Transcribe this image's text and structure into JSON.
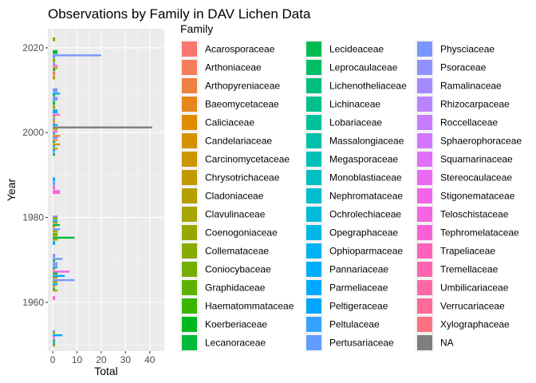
{
  "chart_data": {
    "type": "bar",
    "orientation": "horizontal",
    "title": "Observations by Family in DAV Lichen Data",
    "xlabel": "Total",
    "ylabel": "Year",
    "xlim": [
      -2,
      46
    ],
    "ylim": [
      1948.5,
      2024.5
    ],
    "x_ticks": [
      0,
      10,
      20,
      30,
      40
    ],
    "y_ticks": [
      1960,
      1980,
      2000,
      2020
    ],
    "grid": true,
    "legend_title": "Family",
    "legend_position": "right",
    "families": [
      {
        "name": "Acarosporaceae",
        "color": "#F8766D"
      },
      {
        "name": "Arthoniaceae",
        "color": "#F47D5A"
      },
      {
        "name": "Arthopyreniaceae",
        "color": "#EE8044"
      },
      {
        "name": "Baeomycetaceae",
        "color": "#E7861B"
      },
      {
        "name": "Caliciaceae",
        "color": "#DF8C00"
      },
      {
        "name": "Candelariaceae",
        "color": "#D59100"
      },
      {
        "name": "Carcinomycetaceae",
        "color": "#CB9600"
      },
      {
        "name": "Chrysotrichaceae",
        "color": "#C19A00"
      },
      {
        "name": "Cladoniaceae",
        "color": "#B49F00"
      },
      {
        "name": "Clavulinaceae",
        "color": "#A6A400"
      },
      {
        "name": "Coenogoniaceae",
        "color": "#98A700"
      },
      {
        "name": "Collemataceae",
        "color": "#87AB00"
      },
      {
        "name": "Coniocybaceae",
        "color": "#74AE00"
      },
      {
        "name": "Graphidaceae",
        "color": "#5BB300"
      },
      {
        "name": "Haematommataceae",
        "color": "#39B600"
      },
      {
        "name": "Koerberiaceae",
        "color": "#00B81F"
      },
      {
        "name": "Lecanoraceae",
        "color": "#00BA38"
      },
      {
        "name": "Lecideaceae",
        "color": "#00BC4F"
      },
      {
        "name": "Leprocaulaceae",
        "color": "#00BE67"
      },
      {
        "name": "Lichenotheliaceae",
        "color": "#00BF7D"
      },
      {
        "name": "Lichinaceae",
        "color": "#00C08D"
      },
      {
        "name": "Lobariaceae",
        "color": "#00C19C"
      },
      {
        "name": "Massalongiaceae",
        "color": "#00C1AA"
      },
      {
        "name": "Megasporaceae",
        "color": "#00C0B8"
      },
      {
        "name": "Monoblastiaceae",
        "color": "#00BFC4"
      },
      {
        "name": "Nephromataceae",
        "color": "#00BDD0"
      },
      {
        "name": "Ochrolechiaceae",
        "color": "#00BBDB"
      },
      {
        "name": "Opegraphaceae",
        "color": "#00B7E7"
      },
      {
        "name": "Ophioparmaceae",
        "color": "#00B2F2"
      },
      {
        "name": "Pannariaceae",
        "color": "#00ADFA"
      },
      {
        "name": "Parmeliaceae",
        "color": "#00A9FF"
      },
      {
        "name": "Peltigeraceae",
        "color": "#00A5FF"
      },
      {
        "name": "Peltulaceae",
        "color": "#35A2FF"
      },
      {
        "name": "Pertusariaceae",
        "color": "#619CFF"
      },
      {
        "name": "Physciaceae",
        "color": "#7997FF"
      },
      {
        "name": "Psoraceae",
        "color": "#8F91FF"
      },
      {
        "name": "Ramalinaceae",
        "color": "#A58AFF"
      },
      {
        "name": "Rhizocarpaceae",
        "color": "#B983FF"
      },
      {
        "name": "Roccellaceae",
        "color": "#C77CFF"
      },
      {
        "name": "Sphaerophoraceae",
        "color": "#D376FF"
      },
      {
        "name": "Squamarinaceae",
        "color": "#E06FF9"
      },
      {
        "name": "Stereocaulaceae",
        "color": "#EA6AF1"
      },
      {
        "name": "Stigonemataceae",
        "color": "#F166E8"
      },
      {
        "name": "Teloschistaceae",
        "color": "#F763E0"
      },
      {
        "name": "Tephromelataceae",
        "color": "#FB61D7"
      },
      {
        "name": "Trapeliaceae",
        "color": "#FF62BC"
      },
      {
        "name": "Tremellaceae",
        "color": "#FF64B0"
      },
      {
        "name": "Umbilicariaceae",
        "color": "#FF67A4"
      },
      {
        "name": "Verrucariaceae",
        "color": "#FF6A98"
      },
      {
        "name": "Xylographaceae",
        "color": "#FC717F"
      },
      {
        "name": "NA",
        "color": "#7F7F7F"
      }
    ],
    "bars": [
      {
        "year": 1950,
        "family": "Peltigeraceae",
        "value": 1
      },
      {
        "year": 1950,
        "family": "Cladoniaceae",
        "value": 1
      },
      {
        "year": 1951,
        "family": "Physciaceae",
        "value": 1
      },
      {
        "year": 1951,
        "family": "Lecanoraceae",
        "value": 1
      },
      {
        "year": 1952,
        "family": "Parmeliaceae",
        "value": 4
      },
      {
        "year": 1952,
        "family": "Teloschistaceae",
        "value": 1
      },
      {
        "year": 1953,
        "family": "Physciaceae",
        "value": 1
      },
      {
        "year": 1953,
        "family": "Collemataceae",
        "value": 1
      },
      {
        "year": 1961,
        "family": "Teloschistaceae",
        "value": 1
      },
      {
        "year": 1963,
        "family": "Lecanoraceae",
        "value": 1
      },
      {
        "year": 1963,
        "family": "Cladoniaceae",
        "value": 2
      },
      {
        "year": 1964,
        "family": "Parmeliaceae",
        "value": 2
      },
      {
        "year": 1964,
        "family": "Candelariaceae",
        "value": 1
      },
      {
        "year": 1965,
        "family": "Physciaceae",
        "value": 9
      },
      {
        "year": 1965,
        "family": "Collemataceae",
        "value": 2
      },
      {
        "year": 1966,
        "family": "Peltigeraceae",
        "value": 5
      },
      {
        "year": 1966,
        "family": "Cladoniaceae",
        "value": 2
      },
      {
        "year": 1967,
        "family": "Teloschistaceae",
        "value": 7
      },
      {
        "year": 1967,
        "family": "Lecanoraceae",
        "value": 2
      },
      {
        "year": 1968,
        "family": "Parmeliaceae",
        "value": 2
      },
      {
        "year": 1968,
        "family": "Candelariaceae",
        "value": 1
      },
      {
        "year": 1969,
        "family": "Physciaceae",
        "value": 2
      },
      {
        "year": 1970,
        "family": "Pertusariaceae",
        "value": 4
      },
      {
        "year": 1970,
        "family": "Lecanoraceae",
        "value": 1
      },
      {
        "year": 1971,
        "family": "Physciaceae",
        "value": 1
      },
      {
        "year": 1974,
        "family": "Parmeliaceae",
        "value": 1
      },
      {
        "year": 1975,
        "family": "Lecanoraceae",
        "value": 9
      },
      {
        "year": 1975,
        "family": "Cladoniaceae",
        "value": 2
      },
      {
        "year": 1976,
        "family": "Collemataceae",
        "value": 2
      },
      {
        "year": 1977,
        "family": "Physciaceae",
        "value": 3
      },
      {
        "year": 1977,
        "family": "Cladoniaceae",
        "value": 2
      },
      {
        "year": 1978,
        "family": "Lecanoraceae",
        "value": 3
      },
      {
        "year": 1978,
        "family": "Candelariaceae",
        "value": 1
      },
      {
        "year": 1979,
        "family": "Parmeliaceae",
        "value": 2
      },
      {
        "year": 1979,
        "family": "Cladoniaceae",
        "value": 2
      },
      {
        "year": 1980,
        "family": "Physciaceae",
        "value": 2
      },
      {
        "year": 1980,
        "family": "Collemataceae",
        "value": 2
      },
      {
        "year": 1986,
        "family": "Teloschistaceae",
        "value": 3
      },
      {
        "year": 1987,
        "family": "Teloschistaceae",
        "value": 1
      },
      {
        "year": 1988,
        "family": "Physciaceae",
        "value": 1
      },
      {
        "year": 1989,
        "family": "Parmeliaceae",
        "value": 1
      },
      {
        "year": 1995,
        "family": "Physciaceae",
        "value": 1
      },
      {
        "year": 1995,
        "family": "Lecanoraceae",
        "value": 1
      },
      {
        "year": 1996,
        "family": "Cladoniaceae",
        "value": 2
      },
      {
        "year": 1996,
        "family": "Parmeliaceae",
        "value": 1
      },
      {
        "year": 1997,
        "family": "Candelariaceae",
        "value": 3
      },
      {
        "year": 1997,
        "family": "Peltigeraceae",
        "value": 1
      },
      {
        "year": 1998,
        "family": "Arthoniaceae",
        "value": 2
      },
      {
        "year": 1998,
        "family": "Lecanoraceae",
        "value": 1
      },
      {
        "year": 1999,
        "family": "Baeomycetaceae",
        "value": 3
      },
      {
        "year": 1999,
        "family": "Physciaceae",
        "value": 2
      },
      {
        "year": 2000,
        "family": "Teloschistaceae",
        "value": 2
      },
      {
        "year": 2000,
        "family": "Parmeliaceae",
        "value": 1
      },
      {
        "year": 2001,
        "family": "NA",
        "value": 41
      },
      {
        "year": 2001,
        "family": "Cladoniaceae",
        "value": 2
      },
      {
        "year": 2002,
        "family": "Acarosporaceae",
        "value": 1
      },
      {
        "year": 2002,
        "family": "Peltigeraceae",
        "value": 2
      },
      {
        "year": 2003,
        "family": "Physciaceae",
        "value": 1
      },
      {
        "year": 2003,
        "family": "Candelariaceae",
        "value": 1
      },
      {
        "year": 2004,
        "family": "Teloschistaceae",
        "value": 3
      },
      {
        "year": 2004,
        "family": "Cladoniaceae",
        "value": 1
      },
      {
        "year": 2005,
        "family": "Parmeliaceae",
        "value": 2
      },
      {
        "year": 2006,
        "family": "Cladoniaceae",
        "value": 1
      },
      {
        "year": 2007,
        "family": "Lecanoraceae",
        "value": 1
      },
      {
        "year": 2008,
        "family": "Physciaceae",
        "value": 2
      },
      {
        "year": 2009,
        "family": "Parmeliaceae",
        "value": 3
      },
      {
        "year": 2009,
        "family": "Lecanoraceae",
        "value": 1
      },
      {
        "year": 2010,
        "family": "Physciaceae",
        "value": 2
      },
      {
        "year": 2013,
        "family": "Cladoniaceae",
        "value": 1
      },
      {
        "year": 2014,
        "family": "Arthoniaceae",
        "value": 1
      },
      {
        "year": 2015,
        "family": "Cladoniaceae",
        "value": 2
      },
      {
        "year": 2015,
        "family": "Lecanoraceae",
        "value": 1
      },
      {
        "year": 2016,
        "family": "Physciaceae",
        "value": 1
      },
      {
        "year": 2016,
        "family": "Teloschistaceae",
        "value": 2
      },
      {
        "year": 2017,
        "family": "Collemataceae",
        "value": 1
      },
      {
        "year": 2018,
        "family": "Physciaceae",
        "value": 20
      },
      {
        "year": 2018,
        "family": "Pertusariaceae",
        "value": 1
      },
      {
        "year": 2019,
        "family": "Lecanoraceae",
        "value": 2
      },
      {
        "year": 2022,
        "family": "Coniocybaceae",
        "value": 1
      }
    ]
  }
}
